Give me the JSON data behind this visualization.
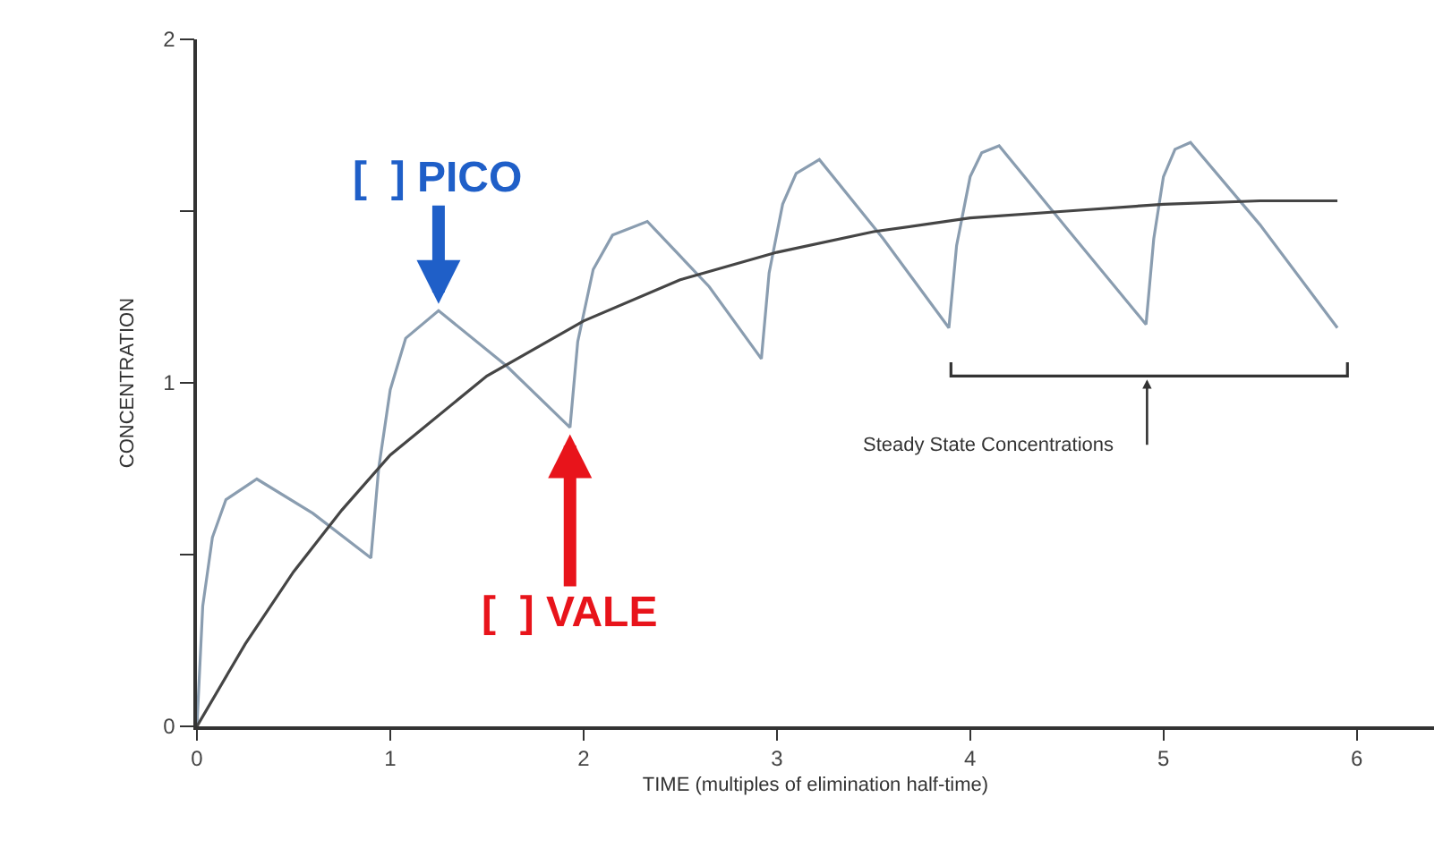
{
  "chart_data": {
    "type": "line",
    "xlabel": "TIME (multiples of elimination half-time)",
    "ylabel": "CONCENTRATION",
    "xlim": [
      0,
      6.4
    ],
    "xticks": [
      0,
      1,
      2,
      3,
      4,
      5,
      6
    ],
    "ylim": [
      0,
      2
    ],
    "yticks": [
      0,
      {
        "value": 0.5,
        "label": null
      },
      1,
      {
        "value": 1.5,
        "label": null
      },
      2
    ],
    "marker": "none",
    "line_style": "solid",
    "series": [
      {
        "color": "#8a9db0",
        "x": [
          0,
          0.03,
          0.08,
          0.15,
          0.31,
          0.6,
          0.9,
          0.94,
          1.0,
          1.08,
          1.25,
          1.6,
          1.93,
          1.97,
          2.05,
          2.15,
          2.33,
          2.65,
          2.92,
          2.96,
          3.03,
          3.1,
          3.22,
          3.55,
          3.89,
          3.93,
          4.0,
          4.06,
          4.15,
          4.5,
          4.91,
          4.95,
          5.0,
          5.06,
          5.14,
          5.5,
          5.9
        ],
        "values": [
          0,
          0.35,
          0.55,
          0.66,
          0.72,
          0.62,
          0.49,
          0.75,
          0.98,
          1.13,
          1.21,
          1.05,
          0.87,
          1.12,
          1.33,
          1.43,
          1.47,
          1.28,
          1.07,
          1.32,
          1.52,
          1.61,
          1.65,
          1.42,
          1.16,
          1.4,
          1.6,
          1.67,
          1.69,
          1.45,
          1.17,
          1.42,
          1.6,
          1.68,
          1.7,
          1.46,
          1.16
        ]
      },
      {
        "color": "#454545",
        "x": [
          0,
          0.25,
          0.5,
          0.75,
          1,
          1.5,
          2,
          2.5,
          3,
          3.5,
          4,
          4.5,
          5,
          5.5,
          5.9
        ],
        "values": [
          0,
          0.24,
          0.45,
          0.63,
          0.79,
          1.02,
          1.18,
          1.3,
          1.38,
          1.44,
          1.48,
          1.5,
          1.52,
          1.53,
          1.53
        ]
      }
    ],
    "annotations": [
      {
        "text": "[  ] PICO",
        "x": 1.25,
        "y": 1.23
      },
      {
        "text": "[  ] VALE",
        "x": 1.93,
        "y": 0.85
      },
      "Steady State Concentrations"
    ]
  }
}
